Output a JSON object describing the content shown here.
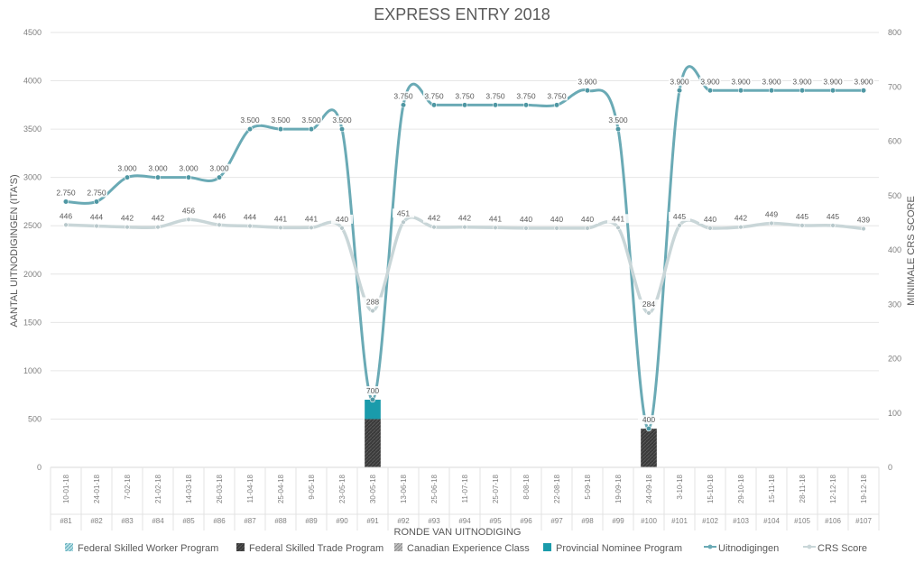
{
  "chart_data": {
    "type": "bar",
    "title": "EXPRESS ENTRY 2018",
    "xlabel": "RONDE VAN UITNODIGING",
    "ylabel": "AANTAL UITNODIGINGEN (ITA'S)",
    "y2label": "MINIMALE CRS SCORE",
    "ylim": [
      0,
      4500
    ],
    "y2lim": [
      0,
      800
    ],
    "yticks": [
      "0",
      "500",
      "1000",
      "1500",
      "2000",
      "2500",
      "3000",
      "3500",
      "4000",
      "4500"
    ],
    "y2ticks": [
      "0",
      "100",
      "200",
      "300",
      "400",
      "500",
      "600",
      "700",
      "800"
    ],
    "grid": true,
    "legend_position": "bottom",
    "dates": [
      "10-01-18",
      "24-01-18",
      "7-02-18",
      "21-02-18",
      "14-03-18",
      "26-03-18",
      "11-04-18",
      "25-04-18",
      "9-05-18",
      "23-05-18",
      "30-05-18",
      "13-06-18",
      "25-06-18",
      "11-07-18",
      "25-07-18",
      "8-08-18",
      "22-08-18",
      "5-09-18",
      "19-09-18",
      "24-09-18",
      "3-10-18",
      "15-10-18",
      "29-10-18",
      "15-11-18",
      "28-11-18",
      "12-12-18",
      "19-12-18"
    ],
    "rounds": [
      "#81",
      "#82",
      "#83",
      "#84",
      "#85",
      "#86",
      "#87",
      "#88",
      "#89",
      "#90",
      "#91",
      "#92",
      "#93",
      "#94",
      "#95",
      "#96",
      "#97",
      "#98",
      "#99",
      "#100",
      "#101",
      "#102",
      "#103",
      "#104",
      "#105",
      "#106",
      "#107"
    ],
    "series": [
      {
        "name": "Federal Skilled Worker Program",
        "kind": "bar",
        "color": "#7fc3cf",
        "values": [
          0,
          0,
          0,
          0,
          0,
          0,
          0,
          0,
          0,
          0,
          0,
          0,
          0,
          0,
          0,
          0,
          0,
          0,
          0,
          0,
          0,
          0,
          0,
          0,
          0,
          0,
          0
        ]
      },
      {
        "name": "Federal Skilled Trade Program",
        "kind": "bar",
        "color": "#404040",
        "values": [
          0,
          0,
          0,
          0,
          0,
          0,
          0,
          0,
          0,
          0,
          500,
          0,
          0,
          0,
          0,
          0,
          0,
          0,
          0,
          400,
          0,
          0,
          0,
          0,
          0,
          0,
          0
        ]
      },
      {
        "name": "Canadian Experience Class",
        "kind": "bar",
        "color": "#a6a6a6",
        "values": [
          0,
          0,
          0,
          0,
          0,
          0,
          0,
          0,
          0,
          0,
          0,
          0,
          0,
          0,
          0,
          0,
          0,
          0,
          0,
          0,
          0,
          0,
          0,
          0,
          0,
          0,
          0
        ]
      },
      {
        "name": "Provincial Nominee Program",
        "kind": "bar",
        "color": "#1a9bab",
        "values": [
          0,
          0,
          0,
          0,
          0,
          0,
          0,
          0,
          0,
          0,
          200,
          0,
          0,
          0,
          0,
          0,
          0,
          0,
          0,
          0,
          0,
          0,
          0,
          0,
          0,
          0,
          0
        ]
      },
      {
        "name": "Uitnodigingen",
        "kind": "line",
        "axis": "left",
        "color": "#6aaab5",
        "values": [
          2750,
          2750,
          3000,
          3000,
          3000,
          3000,
          3500,
          3500,
          3500,
          3500,
          700,
          3750,
          3750,
          3750,
          3750,
          3750,
          3750,
          3900,
          3500,
          400,
          3900,
          3900,
          3900,
          3900,
          3900,
          3900,
          3900
        ],
        "labels": [
          "2.750",
          "2.750",
          "3.000",
          "3.000",
          "3.000",
          "3.000",
          "3.500",
          "3.500",
          "3.500",
          "3.500",
          "700",
          "3.750",
          "3.750",
          "3.750",
          "3.750",
          "3.750",
          "3.750",
          "3.900",
          "3.500",
          "400",
          "3.900",
          "3.900",
          "3.900",
          "3.900",
          "3.900",
          "3.900",
          "3.900"
        ]
      },
      {
        "name": "CRS Score",
        "kind": "line",
        "axis": "right",
        "color": "#c9d6d8",
        "values": [
          446,
          444,
          442,
          442,
          456,
          446,
          444,
          441,
          441,
          440,
          288,
          451,
          442,
          442,
          441,
          440,
          440,
          440,
          441,
          284,
          445,
          440,
          442,
          449,
          445,
          445,
          439
        ],
        "labels": [
          "446",
          "444",
          "442",
          "442",
          "456",
          "446",
          "444",
          "441",
          "441",
          "440",
          "288",
          "451",
          "442",
          "442",
          "441",
          "440",
          "440",
          "440",
          "441",
          "284",
          "445",
          "440",
          "442",
          "449",
          "445",
          "445",
          "439"
        ]
      }
    ]
  }
}
